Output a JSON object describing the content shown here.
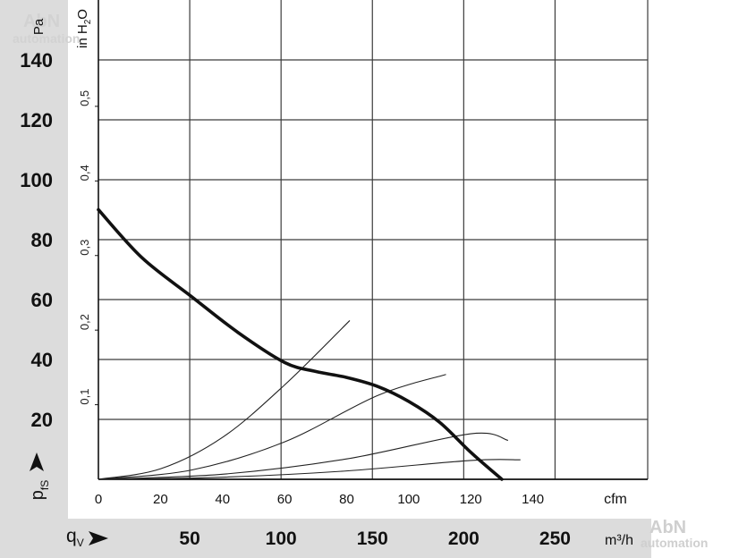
{
  "chart_data": {
    "type": "line",
    "title": "",
    "y_axis_left": {
      "unit": "Pa",
      "label": "p",
      "label_subscript": "fS",
      "ticks": [
        20,
        40,
        60,
        80,
        100,
        120,
        140
      ],
      "range": [
        0,
        160
      ]
    },
    "y_axis_right": {
      "unit_parts": [
        "in H",
        "2",
        "O"
      ],
      "tick_labels": [
        "0,1",
        "0,2",
        "0,3",
        "0,4",
        "0,5"
      ],
      "tick_values_pa": [
        24.9,
        49.8,
        74.7,
        99.6,
        124.5
      ]
    },
    "x_axis": {
      "unit": "cfm",
      "ticks": [
        0,
        20,
        40,
        60,
        80,
        100,
        120,
        140
      ],
      "range": [
        0,
        177
      ]
    },
    "x_axis_secondary": {
      "label": "q",
      "label_subscript": "V",
      "unit": "m³/h",
      "ticks": [
        50,
        100,
        150,
        200,
        250
      ]
    },
    "series": [
      {
        "role": "fan curve",
        "x": [
          0,
          14,
          30,
          45,
          60,
          70,
          80,
          90,
          100,
          110,
          120,
          130
        ],
        "y": [
          90,
          74,
          61,
          49,
          39,
          36,
          34,
          31,
          26,
          19,
          9,
          0
        ]
      }
    ],
    "system_curves": [
      {
        "x": [
          0,
          20,
          40,
          60,
          81
        ],
        "y": [
          0,
          3.5,
          14,
          31.5,
          53
        ]
      },
      {
        "x": [
          0,
          30,
          60,
          90,
          112
        ],
        "y": [
          0,
          3.1,
          12.5,
          28,
          35
        ]
      },
      {
        "x": [
          0,
          40,
          80,
          120,
          132
        ],
        "y": [
          0,
          1.7,
          6.8,
          15.2,
          13
        ]
      },
      {
        "x": [
          0,
          40,
          80,
          120,
          136
        ],
        "y": [
          0,
          0.7,
          2.8,
          6.3,
          6.5
        ]
      }
    ],
    "grid": true,
    "legend": "none",
    "colors": {
      "grid": "#3c3c3c",
      "curve": "#111111",
      "band": "#dcdcdc",
      "watermark": "#cfcfcf"
    }
  },
  "watermark": {
    "line1": "AbN",
    "line2": "automation"
  }
}
